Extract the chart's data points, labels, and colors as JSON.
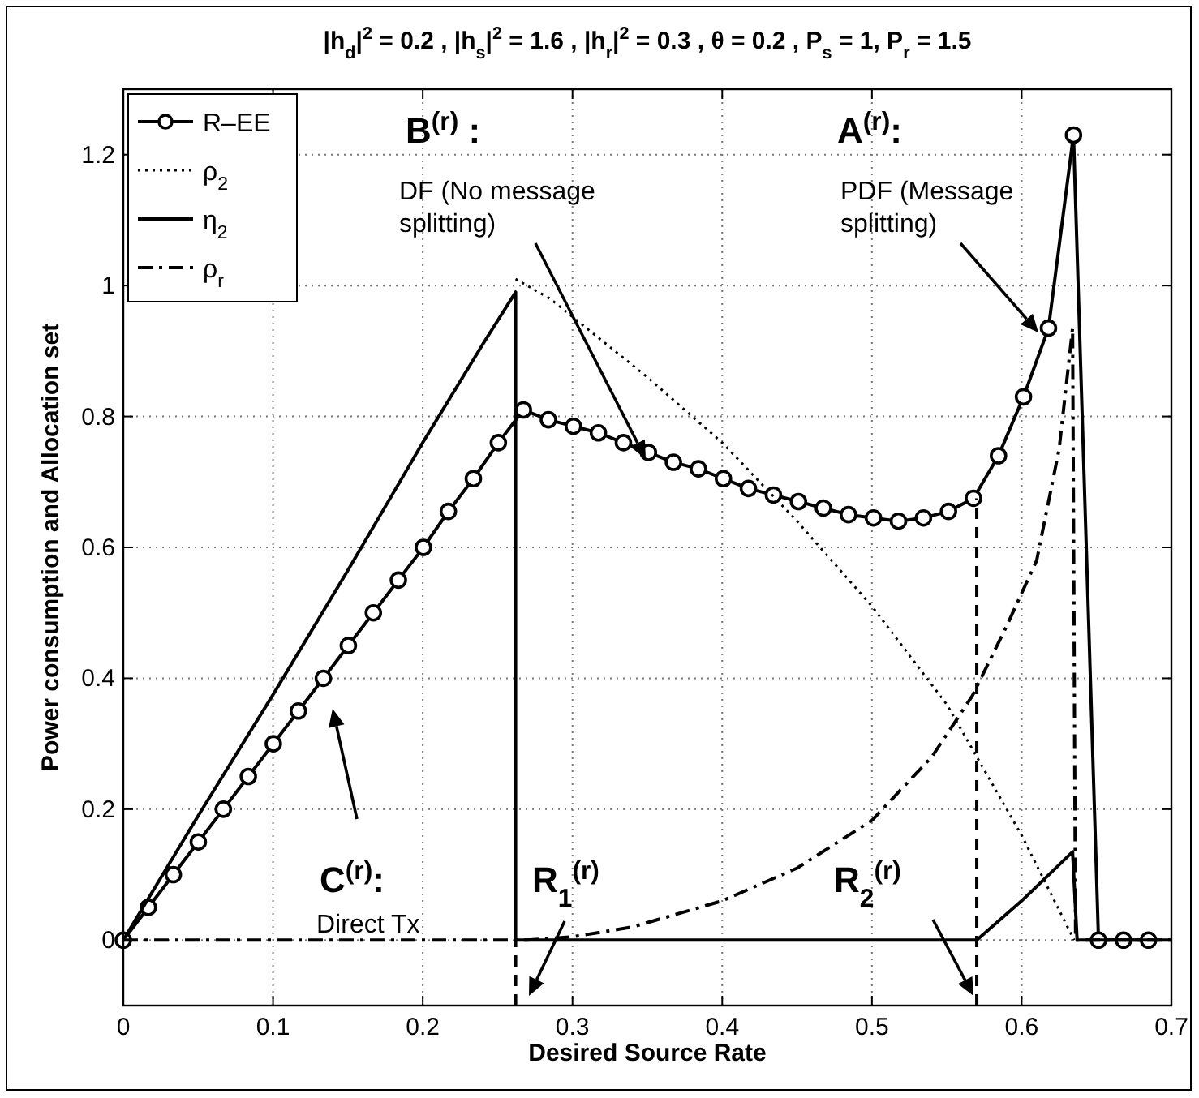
{
  "chart_data": {
    "type": "line",
    "title": "|h$_{d}$|$^{2}$ = 0.2 , |h$_{s}$|$^{2}$ = 1.6 , |h$_{r}$|$^{2}$ = 0.3 , θ = 0.2 , P$_{s}$ = 1, P$_{r}$ = 1.5",
    "xlabel": "Desired Source Rate",
    "ylabel": "Power consumption and Allocation set",
    "xlim": [
      0,
      0.7
    ],
    "xticks": [
      0,
      0.1,
      0.2,
      0.3,
      0.4,
      0.5,
      0.6,
      0.7
    ],
    "ylim": [
      -0.1,
      1.3
    ],
    "yticks": [
      0,
      0.2,
      0.4,
      0.6,
      0.8,
      1,
      1.2
    ],
    "grid": true,
    "legend": "top left",
    "series": [
      {
        "name": "R–EE",
        "color": "#000000",
        "marker": "circle",
        "line_style": "solid",
        "x": [
          0,
          0.0167,
          0.0334,
          0.0501,
          0.0668,
          0.0835,
          0.1002,
          0.1169,
          0.1336,
          0.1503,
          0.167,
          0.1837,
          0.2004,
          0.2171,
          0.2338,
          0.2505,
          0.2672,
          0.2839,
          0.3006,
          0.3173,
          0.334,
          0.3507,
          0.3674,
          0.3841,
          0.4008,
          0.4175,
          0.4342,
          0.4509,
          0.4676,
          0.4843,
          0.501,
          0.5177,
          0.5344,
          0.5511,
          0.5678,
          0.5845,
          0.6012,
          0.6179,
          0.6346,
          0.6513,
          0.668,
          0.6847
        ],
        "values": [
          0,
          0.05,
          0.1,
          0.15,
          0.2,
          0.25,
          0.3,
          0.35,
          0.4,
          0.45,
          0.5,
          0.55,
          0.6,
          0.655,
          0.705,
          0.76,
          0.81,
          0.795,
          0.785,
          0.775,
          0.76,
          0.745,
          0.73,
          0.72,
          0.705,
          0.69,
          0.68,
          0.67,
          0.66,
          0.65,
          0.645,
          0.64,
          0.645,
          0.655,
          0.675,
          0.74,
          0.83,
          0.935,
          1.23,
          0,
          0,
          0
        ]
      },
      {
        "name": "ρ$_{2}$",
        "color": "#000000",
        "marker": "none",
        "line_style": "dotted",
        "x": [
          0.262,
          0.285,
          0.35,
          0.4,
          0.45,
          0.5,
          0.55,
          0.6,
          0.635
        ],
        "values": [
          1.01,
          0.98,
          0.86,
          0.76,
          0.64,
          0.51,
          0.36,
          0.16,
          0
        ]
      },
      {
        "name": "η$_{2}$",
        "color": "#000000",
        "marker": "none",
        "line_style": "solid",
        "x": [
          0,
          0.05,
          0.1,
          0.15,
          0.2,
          0.24,
          0.262,
          0.262,
          0.57,
          0.6,
          0.634,
          0.637,
          0.7
        ],
        "values": [
          0,
          0.19,
          0.375,
          0.565,
          0.76,
          0.91,
          0.99,
          0,
          0,
          0.06,
          0.135,
          0,
          0
        ]
      },
      {
        "name": "ρ$_{r}$",
        "color": "#000000",
        "marker": "none",
        "line_style": "dashdot",
        "x": [
          0,
          0.27,
          0.3,
          0.34,
          0.4,
          0.45,
          0.5,
          0.54,
          0.567,
          0.59,
          0.61,
          0.625,
          0.634,
          0.636,
          0.7
        ],
        "values": [
          0,
          0,
          0.005,
          0.02,
          0.06,
          0.11,
          0.183,
          0.28,
          0.373,
          0.48,
          0.58,
          0.75,
          0.935,
          0,
          0
        ]
      },
      {
        "color": "#000000",
        "marker": "none",
        "line_style": "dashed",
        "x": [
          0.262,
          0.262
        ],
        "values": [
          -0.1,
          0
        ]
      },
      {
        "color": "#000000",
        "marker": "none",
        "line_style": "dashed",
        "x": [
          0.57,
          0.57
        ],
        "values": [
          -0.1,
          0.675
        ]
      }
    ],
    "annotations": [
      "B$^{(r)}$ :",
      "DF (No message splitting)",
      "A$^{(r)}$:",
      "PDF (Message splitting)",
      "C$^{(r)}$:",
      "Direct Tx",
      "R$_{1}$$^{(r)}$",
      "R$_{2}$$^{(r)}$"
    ]
  }
}
